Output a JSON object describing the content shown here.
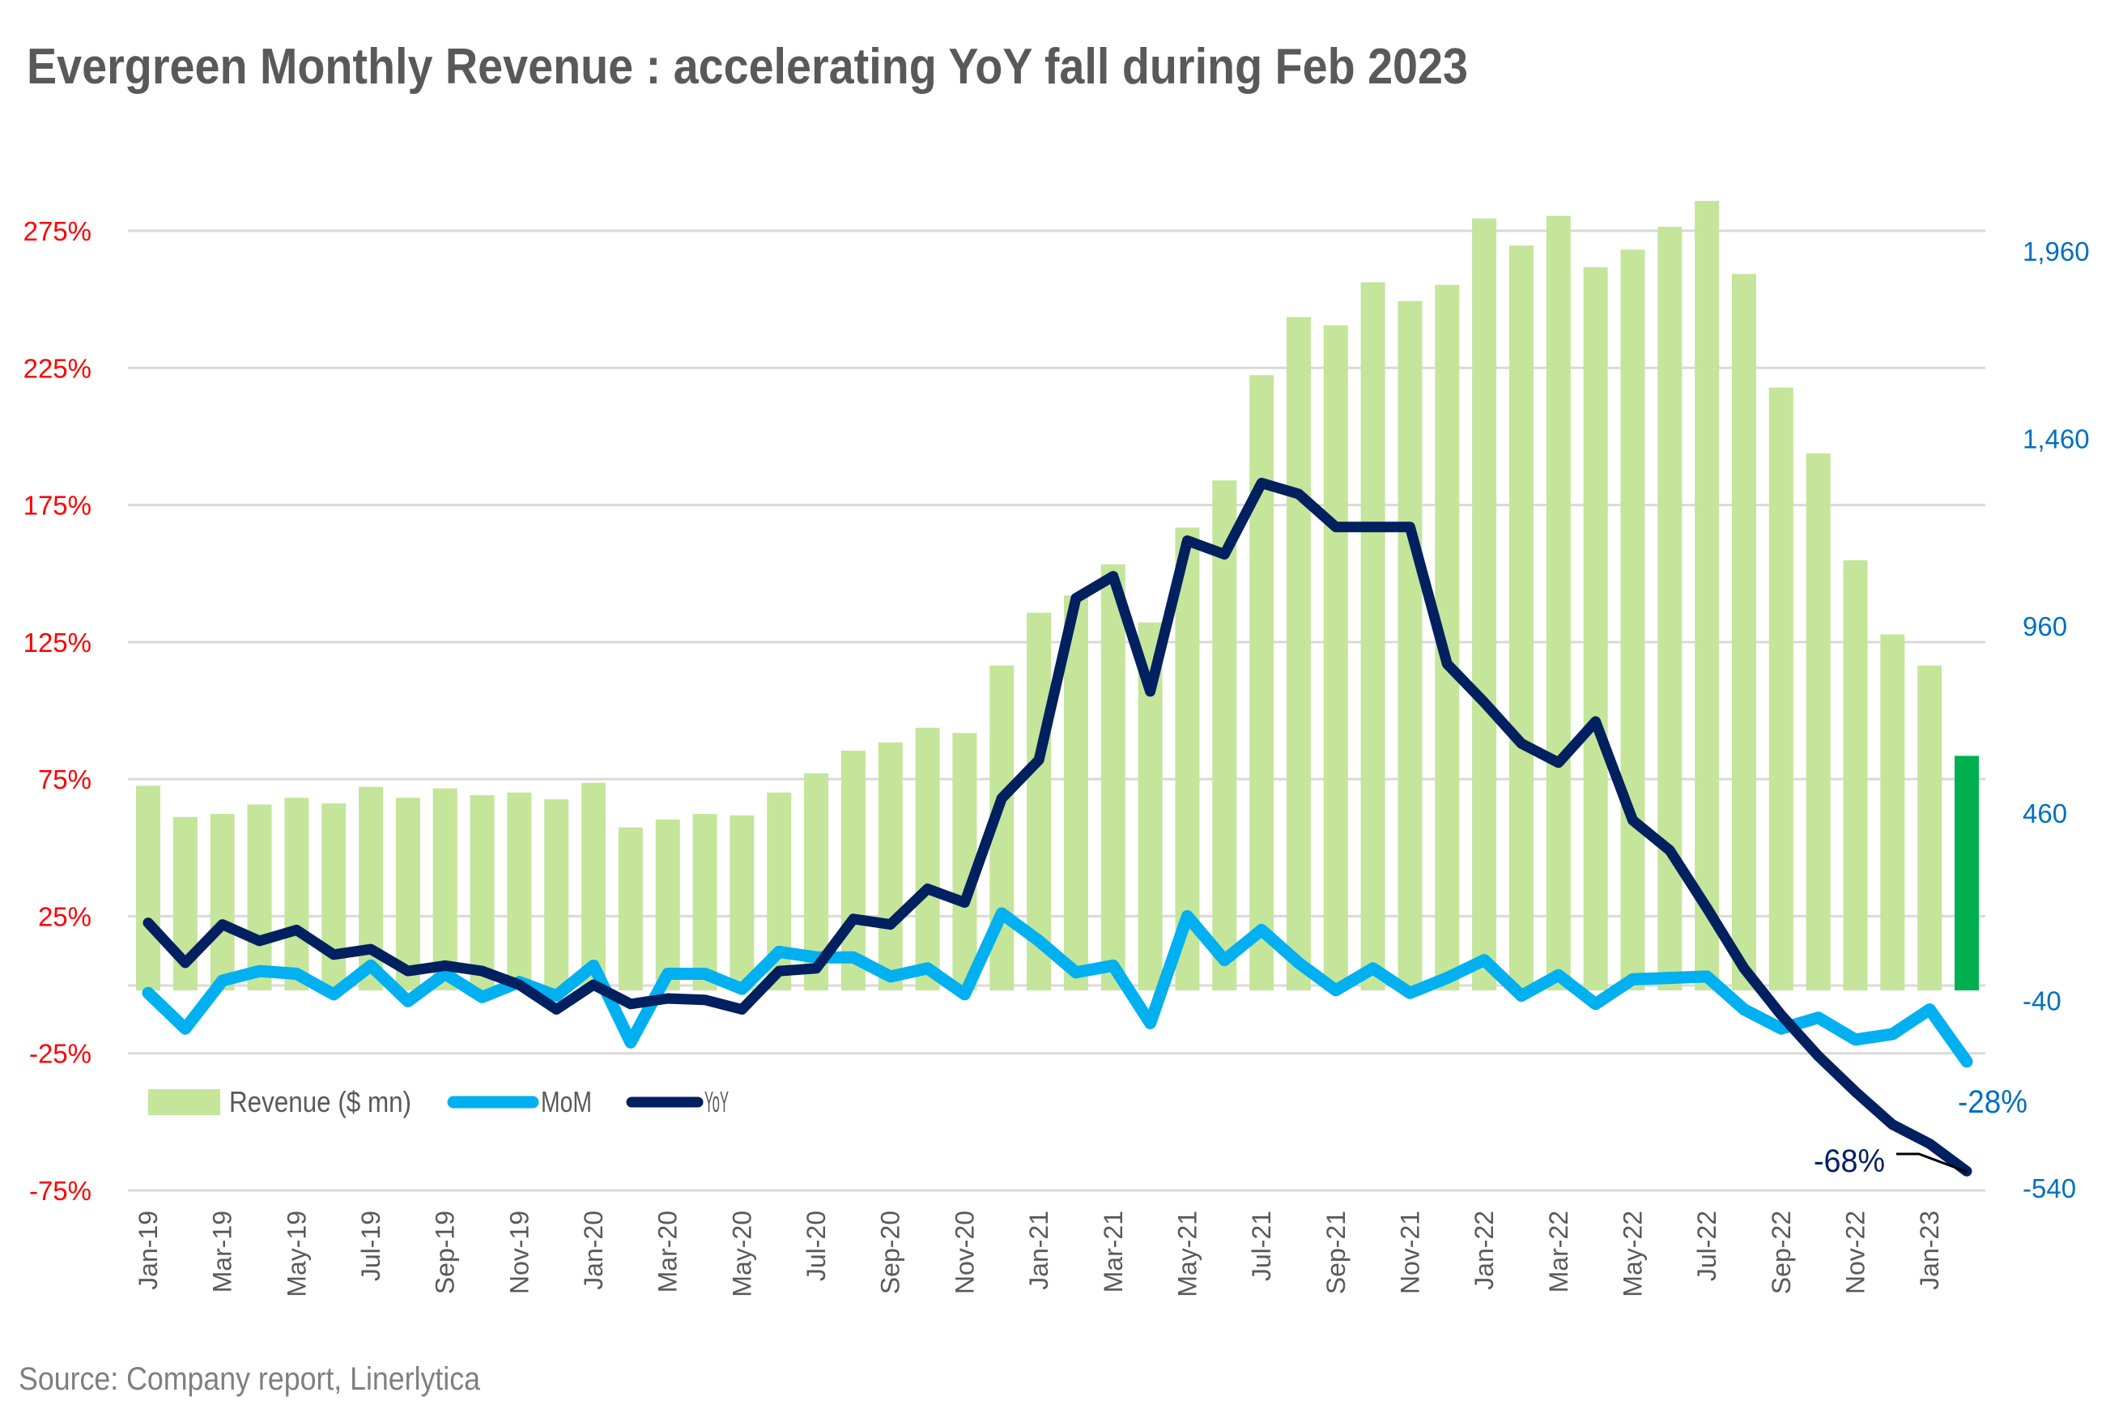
{
  "chart_data": {
    "type": "bar+line",
    "title": "Evergreen Monthly Revenue : accelerating YoY fall during Feb 2023",
    "source": "Source: Company report, Linerlytica",
    "categories": [
      "Jan-19",
      "Feb-19",
      "Mar-19",
      "Apr-19",
      "May-19",
      "Jun-19",
      "Jul-19",
      "Aug-19",
      "Sep-19",
      "Oct-19",
      "Nov-19",
      "Dec-19",
      "Jan-20",
      "Feb-20",
      "Mar-20",
      "Apr-20",
      "May-20",
      "Jun-20",
      "Jul-20",
      "Aug-20",
      "Sep-20",
      "Oct-20",
      "Nov-20",
      "Dec-20",
      "Jan-21",
      "Feb-21",
      "Mar-21",
      "Apr-21",
      "May-21",
      "Jun-21",
      "Jul-21",
      "Aug-21",
      "Sep-21",
      "Oct-21",
      "Nov-21",
      "Dec-21",
      "Jan-22",
      "Feb-22",
      "Mar-22",
      "Apr-22",
      "May-22",
      "Jun-22",
      "Jul-22",
      "Aug-22",
      "Sep-22",
      "Oct-22",
      "Nov-22",
      "Dec-22",
      "Jan-23",
      "Feb-23"
    ],
    "x_tick_labels": [
      "Jan-19",
      "Mar-19",
      "May-19",
      "Jul-19",
      "Sep-19",
      "Nov-19",
      "Jan-20",
      "Mar-20",
      "May-20",
      "Jul-20",
      "Sep-20",
      "Nov-20",
      "Jan-21",
      "Mar-21",
      "May-21",
      "Jul-21",
      "Sep-21",
      "Nov-21",
      "Jan-22",
      "Mar-22",
      "May-22",
      "Jul-22",
      "Sep-22",
      "Nov-22",
      "Jan-23"
    ],
    "series": [
      {
        "name": "Revenue ($ mn)",
        "type": "bar",
        "axis": "right",
        "color": "#c4e59a",
        "highlight_last_color": "#00b050",
        "values": [
          533,
          450,
          458,
          483,
          501,
          486,
          530,
          501,
          526,
          508,
          515,
          497,
          541,
          422,
          443,
          458,
          454,
          515,
          566,
          627,
          649,
          688,
          674,
          854,
          995,
          1041,
          1124,
          969,
          1222,
          1348,
          1629,
          1784,
          1762,
          1877,
          1827,
          1870,
          2047,
          1975,
          2054,
          1917,
          1964,
          2025,
          2094,
          1899,
          1596,
          1420,
          1135,
          937,
          854,
          613
        ]
      },
      {
        "name": "MoM",
        "type": "line",
        "axis": "left",
        "unit": "%",
        "color": "#00b0f0",
        "values": [
          -3,
          -16,
          1.5,
          5,
          4,
          -3.5,
          7,
          -6,
          4,
          -4.5,
          1,
          -4,
          7,
          -21,
          4,
          4,
          -1.5,
          12,
          10,
          10,
          3,
          6,
          -3.5,
          26,
          16,
          4.5,
          7,
          -14,
          25,
          9,
          20,
          8,
          -2,
          6,
          -3,
          2.5,
          9,
          -4,
          3.5,
          -7,
          2,
          2.5,
          3,
          -9,
          -16,
          -12,
          -20,
          -18,
          -9,
          -28
        ]
      },
      {
        "name": "YoY",
        "type": "line",
        "axis": "left",
        "unit": "%",
        "color": "#002060",
        "values": [
          22.6,
          8,
          22,
          16,
          20,
          11,
          13,
          5,
          7,
          5,
          0,
          -9,
          0,
          -7,
          -5,
          -5.5,
          -9,
          5,
          6,
          24,
          22,
          35,
          30,
          68,
          82,
          141,
          149,
          107,
          162,
          157,
          183,
          179,
          167,
          167,
          167,
          117,
          103,
          88,
          81,
          96,
          60,
          49,
          28,
          6,
          -11,
          -26,
          -39,
          -51,
          -58,
          -68
        ]
      }
    ],
    "left_axis": {
      "ticks": [
        "275%",
        "225%",
        "175%",
        "125%",
        "75%",
        "25%",
        "-25%",
        "-75%"
      ],
      "values": [
        275,
        225,
        175,
        125,
        75,
        25,
        -25,
        -75
      ],
      "range": [
        -75,
        275
      ],
      "color": "#ff0000"
    },
    "right_axis": {
      "ticks": [
        "1,960",
        "1,460",
        "960",
        "460",
        "-40",
        "-540"
      ],
      "values": [
        1960,
        1460,
        960,
        460,
        -40,
        -540
      ],
      "range": [
        -540,
        1960
      ],
      "color": "#0070c0"
    },
    "annotations": {
      "mom_last": "-28%",
      "yoy_last": "-68%"
    },
    "legend": {
      "position": "bottom-left",
      "items": [
        "Revenue ($ mn)",
        "MoM",
        "YoY"
      ]
    },
    "grid": true
  }
}
